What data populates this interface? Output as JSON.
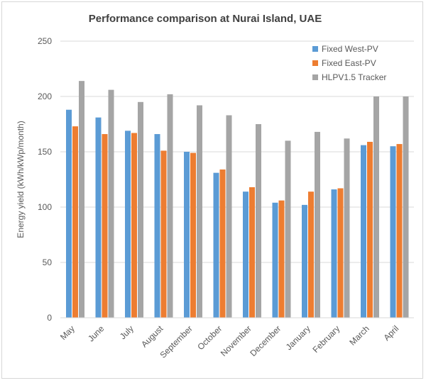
{
  "chart_data": {
    "type": "bar",
    "title": "Performance comparison at Nurai Island, UAE",
    "xlabel": "",
    "ylabel": "Energy yield (kWh/kWp/month)",
    "ylim": [
      0,
      250
    ],
    "yticks": [
      0,
      50,
      100,
      150,
      200,
      250
    ],
    "grid": true,
    "legend_position": "top-right",
    "categories": [
      "May",
      "June",
      "July",
      "August",
      "September",
      "October",
      "November",
      "December",
      "January",
      "February",
      "March",
      "April"
    ],
    "series": [
      {
        "name": "Fixed West-PV",
        "color": "#5b9bd5",
        "values": [
          188,
          181,
          169,
          166,
          150,
          131,
          114,
          104,
          102,
          116,
          156,
          155
        ]
      },
      {
        "name": "Fixed East-PV",
        "color": "#ed7d31",
        "values": [
          173,
          166,
          167,
          151,
          149,
          134,
          118,
          106,
          114,
          117,
          159,
          157
        ]
      },
      {
        "name": "HLPV1.5 Tracker",
        "color": "#a5a5a5",
        "values": [
          214,
          206,
          195,
          202,
          192,
          183,
          175,
          160,
          168,
          162,
          200,
          200
        ]
      }
    ]
  }
}
